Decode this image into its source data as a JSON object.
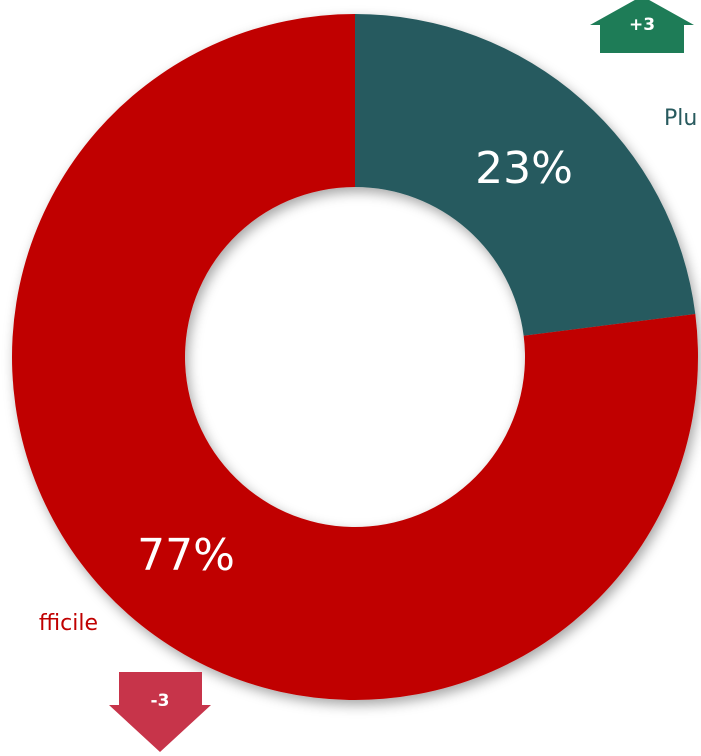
{
  "chart_data": {
    "type": "pie",
    "donut": true,
    "slices": [
      {
        "label": "Plu",
        "value": 23,
        "display": "23%",
        "color": "#285A5E",
        "change": "+3",
        "change_color": "#1E7C57"
      },
      {
        "label": "fficile",
        "value": 77,
        "display": "77%",
        "color": "#C00000",
        "change": "-3",
        "change_color": "#C7344A"
      }
    ]
  }
}
